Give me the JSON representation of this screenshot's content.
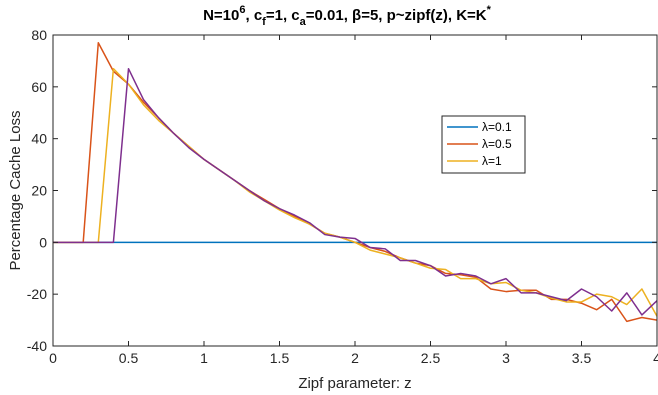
{
  "chart_data": {
    "type": "line",
    "title": {
      "main": "N=10",
      "main_sup": "6",
      "p1": ", c",
      "p1_sub": "f",
      "p2": "=1, c",
      "p2_sub": "a",
      "p3": "=0.01, β=5, p~zipf(z), K=K",
      "p3_sup": "*"
    },
    "xlabel": "Zipf parameter: z",
    "ylabel": "Percentage Cache Loss",
    "xlim": [
      0,
      4
    ],
    "ylim": [
      -40,
      80
    ],
    "xticks": [
      0,
      0.5,
      1,
      1.5,
      2,
      2.5,
      3,
      3.5,
      4
    ],
    "xtick_labels": [
      "0",
      "0.5",
      "1",
      "1.5",
      "2",
      "2.5",
      "3",
      "3.5",
      "4"
    ],
    "yticks": [
      -40,
      -20,
      0,
      20,
      40,
      60,
      80
    ],
    "ytick_labels": [
      "-40",
      "-20",
      "0",
      "20",
      "40",
      "60",
      "80"
    ],
    "grid": false,
    "legend_position": "center-right",
    "series": [
      {
        "name": "λ=0.1",
        "color": "#0072BD",
        "x": [
          0,
          4
        ],
        "y": [
          0,
          0
        ]
      },
      {
        "name": "λ=0.5",
        "color": "#D95319",
        "x": [
          0,
          0.2,
          0.3,
          0.4,
          0.5,
          0.6,
          0.7,
          0.8,
          0.9,
          1.0,
          1.1,
          1.2,
          1.3,
          1.4,
          1.5,
          1.6,
          1.7,
          1.8,
          1.9,
          2.0,
          2.1,
          2.2,
          2.3,
          2.4,
          2.5,
          2.6,
          2.7,
          2.8,
          2.9,
          3.0,
          3.1,
          3.2,
          3.3,
          3.4,
          3.5,
          3.6,
          3.7,
          3.8,
          3.9,
          4.0
        ],
        "y": [
          0,
          0,
          77,
          66,
          61,
          54,
          48,
          42,
          37,
          32,
          28,
          24,
          20,
          16.5,
          13,
          10,
          7,
          3.5,
          2,
          0,
          -2,
          -3.5,
          -6,
          -8,
          -9,
          -12,
          -12.5,
          -13.5,
          -18,
          -19,
          -18.5,
          -18.5,
          -22,
          -22,
          -23.5,
          -26,
          -22,
          -30.5,
          -29,
          -30
        ]
      },
      {
        "name": "λ=1",
        "color": "#EDB120",
        "x": [
          0,
          0.3,
          0.4,
          0.5,
          0.6,
          0.7,
          0.8,
          0.9,
          1.0,
          1.1,
          1.2,
          1.3,
          1.4,
          1.5,
          1.6,
          1.7,
          1.8,
          1.9,
          2.0,
          2.1,
          2.2,
          2.3,
          2.4,
          2.5,
          2.6,
          2.7,
          2.8,
          2.9,
          3.0,
          3.1,
          3.2,
          3.3,
          3.4,
          3.5,
          3.6,
          3.7,
          3.8,
          3.9,
          4.0
        ],
        "y": [
          0,
          0,
          67,
          61,
          53,
          47,
          42,
          37,
          32,
          28,
          24,
          19.5,
          16,
          12.5,
          9.5,
          7,
          3.5,
          2,
          0,
          -3,
          -4.5,
          -6,
          -8,
          -10,
          -10.5,
          -14,
          -14,
          -16,
          -15.5,
          -18.5,
          -19.5,
          -21.5,
          -23,
          -23,
          -20,
          -21,
          -24,
          -18,
          -28.5
        ]
      },
      {
        "name": "",
        "color": "#7E2F8E",
        "x": [
          0,
          0.4,
          0.5,
          0.6,
          0.7,
          0.8,
          0.9,
          1.0,
          1.1,
          1.2,
          1.3,
          1.4,
          1.5,
          1.6,
          1.7,
          1.8,
          1.9,
          2.0,
          2.1,
          2.2,
          2.3,
          2.4,
          2.5,
          2.6,
          2.7,
          2.8,
          2.9,
          3.0,
          3.1,
          3.2,
          3.3,
          3.4,
          3.5,
          3.6,
          3.7,
          3.8,
          3.9,
          4.0
        ],
        "y": [
          0,
          0,
          67,
          55,
          48,
          42,
          36.5,
          32,
          28,
          24,
          20,
          16,
          13,
          10.5,
          7.5,
          3,
          2,
          1.5,
          -2,
          -2.5,
          -7,
          -7,
          -9,
          -13,
          -12,
          -13,
          -16,
          -14,
          -19.5,
          -19.5,
          -21,
          -22.5,
          -18,
          -21,
          -26.5,
          -19.5,
          -28,
          -22.5
        ]
      }
    ]
  }
}
